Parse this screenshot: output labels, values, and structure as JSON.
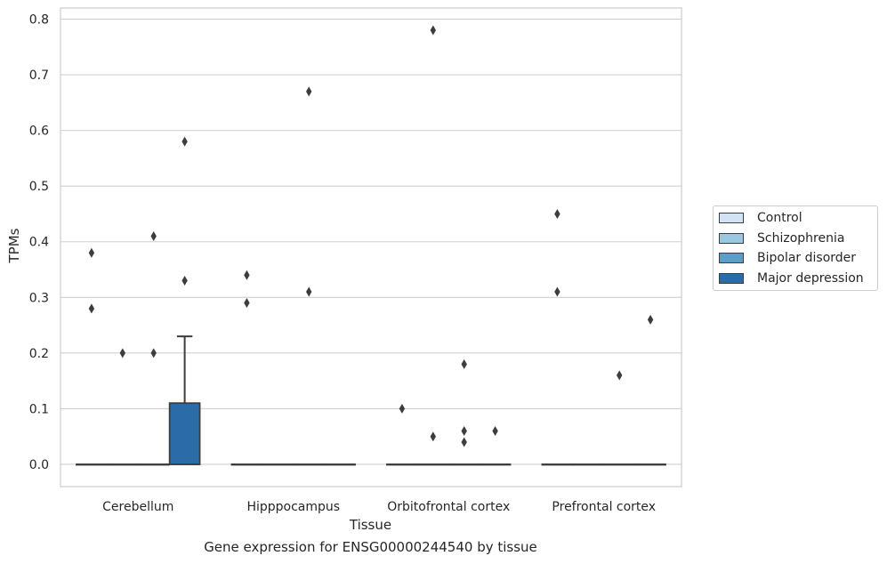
{
  "chart_data": {
    "type": "box",
    "title": "",
    "xlabel": "Tissue",
    "ylabel": "TPMs",
    "caption": "Gene expression for ENSG00000244540 by tissue",
    "categories": [
      "Cerebellum",
      "Hipppocampus",
      "Orbitofrontal cortex",
      "Prefrontal cortex"
    ],
    "yticks": [
      "0.0",
      "0.1",
      "0.2",
      "0.3",
      "0.4",
      "0.5",
      "0.6",
      "0.7",
      "0.8"
    ],
    "ylim": [
      -0.04,
      0.82
    ],
    "grid": true,
    "legend_placement": "outside-right",
    "series": [
      {
        "name": "Control",
        "color": "#d2e3f3",
        "boxes": [
          {
            "q1": 0,
            "median": 0,
            "q3": 0,
            "whisker_low": 0,
            "whisker_high": 0,
            "outliers": [
              0.38,
              0.28
            ]
          },
          {
            "q1": 0,
            "median": 0,
            "q3": 0,
            "whisker_low": 0,
            "whisker_high": 0,
            "outliers": [
              0.34,
              0.29
            ]
          },
          {
            "q1": 0,
            "median": 0,
            "q3": 0,
            "whisker_low": 0,
            "whisker_high": 0,
            "outliers": [
              0.1
            ]
          },
          {
            "q1": 0,
            "median": 0,
            "q3": 0,
            "whisker_low": 0,
            "whisker_high": 0,
            "outliers": [
              0.45,
              0.31
            ]
          }
        ]
      },
      {
        "name": "Schizophrenia",
        "color": "#9ac8e0",
        "boxes": [
          {
            "q1": 0,
            "median": 0,
            "q3": 0,
            "whisker_low": 0,
            "whisker_high": 0,
            "outliers": [
              0.2
            ]
          },
          {
            "q1": 0,
            "median": 0,
            "q3": 0,
            "whisker_low": 0,
            "whisker_high": 0,
            "outliers": []
          },
          {
            "q1": 0,
            "median": 0,
            "q3": 0,
            "whisker_low": 0,
            "whisker_high": 0,
            "outliers": [
              0.78,
              0.05
            ]
          },
          {
            "q1": 0,
            "median": 0,
            "q3": 0,
            "whisker_low": 0,
            "whisker_high": 0,
            "outliers": []
          }
        ]
      },
      {
        "name": "Bipolar disorder",
        "color": "#5a9ec9",
        "boxes": [
          {
            "q1": 0,
            "median": 0,
            "q3": 0,
            "whisker_low": 0,
            "whisker_high": 0,
            "outliers": [
              0.41,
              0.2
            ]
          },
          {
            "q1": 0,
            "median": 0,
            "q3": 0,
            "whisker_low": 0,
            "whisker_high": 0,
            "outliers": [
              0.67,
              0.31
            ]
          },
          {
            "q1": 0,
            "median": 0,
            "q3": 0,
            "whisker_low": 0,
            "whisker_high": 0,
            "outliers": [
              0.18,
              0.06,
              0.04
            ]
          },
          {
            "q1": 0,
            "median": 0,
            "q3": 0,
            "whisker_low": 0,
            "whisker_high": 0,
            "outliers": [
              0.16
            ]
          }
        ]
      },
      {
        "name": "Major depression",
        "color": "#2b6ca8",
        "boxes": [
          {
            "q1": 0,
            "median": 0,
            "q3": 0.11,
            "whisker_low": 0,
            "whisker_high": 0.23,
            "outliers": [
              0.58,
              0.33
            ]
          },
          {
            "q1": 0,
            "median": 0,
            "q3": 0,
            "whisker_low": 0,
            "whisker_high": 0,
            "outliers": []
          },
          {
            "q1": 0,
            "median": 0,
            "q3": 0,
            "whisker_low": 0,
            "whisker_high": 0,
            "outliers": [
              0.06
            ]
          },
          {
            "q1": 0,
            "median": 0,
            "q3": 0,
            "whisker_low": 0,
            "whisker_high": 0,
            "outliers": [
              0.26
            ]
          }
        ]
      }
    ]
  }
}
